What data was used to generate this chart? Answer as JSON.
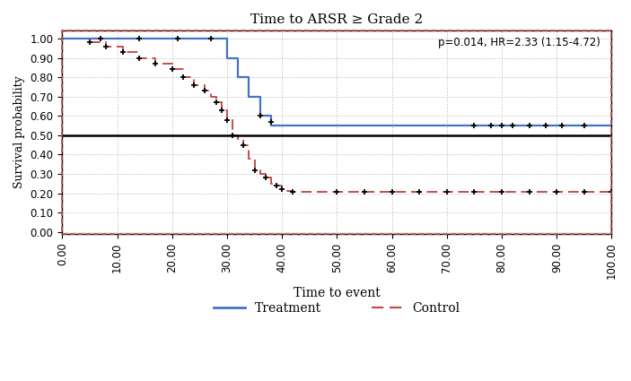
{
  "title": "Time to ARSR ≥ Grade 2",
  "xlabel": "Time to event",
  "ylabel": "Survival probability",
  "annotation": "p=0.014, HR=2.33 (1.15-4.72)",
  "xlim": [
    0,
    100
  ],
  "ylim": [
    0.0,
    1.0
  ],
  "xticks": [
    0,
    10,
    20,
    30,
    40,
    50,
    60,
    70,
    80,
    90,
    100
  ],
  "yticks": [
    0.0,
    0.1,
    0.2,
    0.3,
    0.4,
    0.5,
    0.6,
    0.7,
    0.8,
    0.9,
    1.0
  ],
  "hline_y": 0.5,
  "treatment_color": "#4472C4",
  "control_color": "#C0504D",
  "treatment_step_x": [
    0,
    28,
    30,
    32,
    34,
    36,
    38,
    100
  ],
  "treatment_step_y": [
    1.0,
    1.0,
    0.9,
    0.8,
    0.7,
    0.6,
    0.55,
    0.55
  ],
  "treatment_censor_x": [
    7,
    14,
    21,
    27,
    36,
    38,
    75,
    78,
    80,
    82,
    85,
    88,
    91,
    95
  ],
  "treatment_censor_y": [
    1.0,
    1.0,
    1.0,
    1.0,
    0.6,
    0.57,
    0.55,
    0.55,
    0.55,
    0.55,
    0.55,
    0.55,
    0.55,
    0.55
  ],
  "control_step_x": [
    0,
    5,
    8,
    11,
    14,
    17,
    20,
    22,
    24,
    26,
    27,
    28,
    29,
    30,
    31,
    32,
    33,
    34,
    35,
    36,
    37,
    38,
    39,
    40,
    41,
    42,
    44,
    100
  ],
  "control_step_y": [
    1.0,
    0.98,
    0.96,
    0.93,
    0.9,
    0.87,
    0.84,
    0.8,
    0.76,
    0.73,
    0.7,
    0.67,
    0.63,
    0.58,
    0.5,
    0.48,
    0.45,
    0.38,
    0.32,
    0.3,
    0.28,
    0.25,
    0.24,
    0.22,
    0.21,
    0.205,
    0.205,
    0.205
  ],
  "control_censor_x": [
    5,
    8,
    11,
    14,
    17,
    20,
    22,
    24,
    26,
    28,
    29,
    30,
    31,
    33,
    35,
    37,
    39,
    40,
    42,
    50,
    55,
    60,
    65,
    70,
    75,
    80,
    85,
    90,
    95,
    100
  ],
  "control_censor_y": [
    0.98,
    0.96,
    0.93,
    0.9,
    0.87,
    0.84,
    0.8,
    0.76,
    0.73,
    0.67,
    0.63,
    0.58,
    0.5,
    0.45,
    0.32,
    0.28,
    0.24,
    0.22,
    0.205,
    0.205,
    0.205,
    0.205,
    0.205,
    0.205,
    0.205,
    0.205,
    0.205,
    0.205,
    0.205,
    0.205
  ],
  "legend_treatment_label": "Treatment",
  "legend_control_label": "Control",
  "background_color": "#FFFFFF",
  "grid_color": "#888888"
}
